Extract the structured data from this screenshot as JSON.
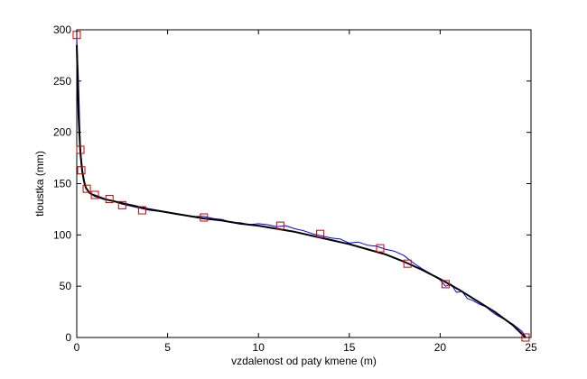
{
  "chart_data": {
    "type": "line",
    "title": "",
    "xlabel": "vzdalenost od paty kmene (m)",
    "ylabel": "tloustka (mm)",
    "xlim": [
      0,
      25
    ],
    "ylim": [
      0,
      300
    ],
    "xticks": [
      0,
      5,
      10,
      15,
      20,
      25
    ],
    "yticks": [
      0,
      50,
      100,
      150,
      200,
      250,
      300
    ],
    "grid": false,
    "legend": "none",
    "series": [
      {
        "style": "measured-line",
        "color": "#0000ff",
        "x": [
          0,
          0.05,
          0.1,
          0.15,
          0.2,
          0.3,
          0.4,
          0.5,
          0.6,
          0.8,
          1.0,
          1.3,
          1.6,
          2.0,
          2.5,
          3.0,
          3.5,
          4.0,
          4.5,
          5.0,
          5.5,
          6.0,
          6.5,
          7.0,
          7.5,
          8.0,
          8.5,
          9.0,
          9.5,
          10.0,
          10.5,
          11.0,
          11.5,
          12.0,
          12.5,
          13.0,
          13.5,
          14.0,
          14.5,
          15.0,
          15.5,
          16.0,
          16.5,
          17.0,
          17.5,
          18.0,
          18.5,
          19.0,
          19.5,
          20.0,
          20.3,
          20.6,
          20.9,
          21.2,
          21.5,
          21.8,
          22.1,
          22.5,
          23.0,
          23.5,
          24.0,
          24.5,
          24.7
        ],
        "y": [
          292,
          270,
          248,
          215,
          185,
          165,
          155,
          146,
          143,
          140,
          139,
          137,
          135,
          133,
          130,
          128,
          126,
          124,
          123,
          122,
          120,
          119,
          118,
          118,
          116,
          115,
          112,
          112,
          110,
          111,
          110,
          108,
          109,
          106,
          104,
          101,
          99,
          97,
          96,
          92,
          93,
          90,
          89,
          86,
          84,
          80,
          73,
          67,
          62,
          56,
          50,
          52,
          44,
          45,
          38,
          36,
          33,
          30,
          23,
          18,
          13,
          6,
          1
        ]
      },
      {
        "style": "fitted-curve",
        "color": "#000000",
        "x": [
          0,
          0.05,
          0.1,
          0.2,
          0.3,
          0.4,
          0.5,
          0.7,
          1.0,
          1.5,
          2.0,
          3.0,
          4.0,
          5.0,
          6.0,
          7.0,
          8.0,
          9.0,
          10.0,
          11.0,
          12.0,
          13.0,
          14.0,
          15.0,
          16.0,
          17.0,
          18.0,
          19.0,
          20.0,
          21.0,
          22.0,
          23.0,
          24.0,
          24.7
        ],
        "y": [
          285,
          250,
          215,
          180,
          162,
          152,
          146,
          141,
          138,
          135,
          133,
          129,
          125,
          122,
          119,
          116,
          114,
          111,
          109,
          106,
          103,
          99,
          95,
          91,
          86,
          81,
          74,
          66,
          57,
          47,
          36,
          25,
          12,
          0
        ]
      },
      {
        "style": "square-markers",
        "color": "#cc0000",
        "x": [
          0.0,
          0.2,
          0.25,
          0.55,
          1.0,
          1.8,
          2.5,
          3.6,
          7.0,
          11.2,
          13.4,
          16.7,
          18.2,
          20.3,
          24.7
        ],
        "y": [
          295,
          183,
          163,
          145,
          139,
          135,
          129,
          124,
          117,
          109,
          101,
          87,
          72,
          52,
          0
        ]
      }
    ]
  }
}
